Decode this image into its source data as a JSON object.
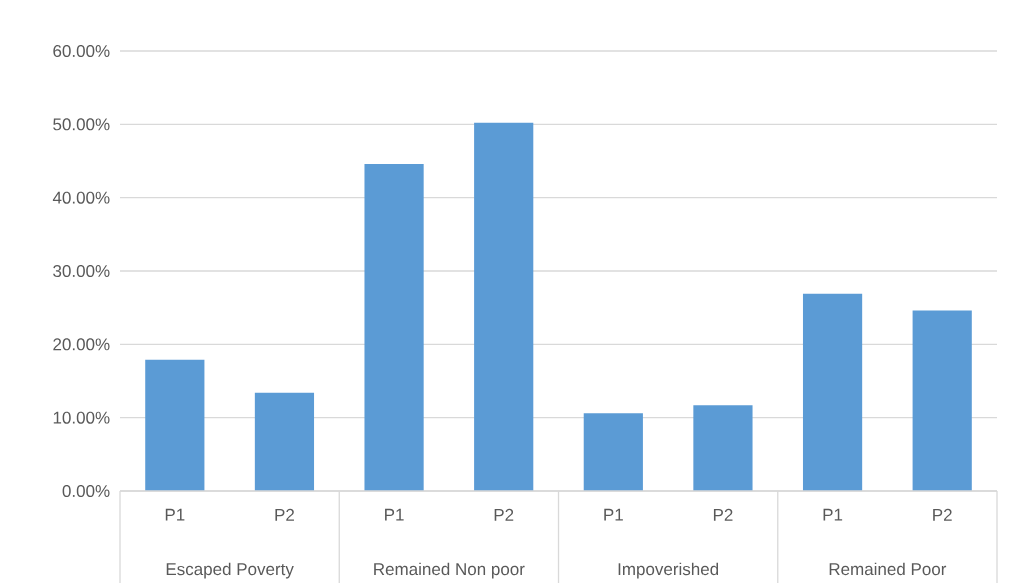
{
  "chart_data": {
    "type": "bar",
    "categories": [
      "P1",
      "P2",
      "P1",
      "P2",
      "P1",
      "P2",
      "P1",
      "P2"
    ],
    "values": [
      17.9,
      13.4,
      44.6,
      50.2,
      10.6,
      11.7,
      26.9,
      24.6
    ],
    "color": "#5b9bd5",
    "ylim": [
      0,
      60
    ],
    "yticks": [
      {
        "value": 0,
        "label": "0.00%"
      },
      {
        "value": 10,
        "label": "10.00%"
      },
      {
        "value": 20,
        "label": "20.00%"
      },
      {
        "value": 30,
        "label": "30.00%"
      },
      {
        "value": 40,
        "label": "40.00%"
      },
      {
        "value": 50,
        "label": "50.00%"
      },
      {
        "value": 60,
        "label": "60.00%"
      }
    ],
    "grid": "y",
    "annotations": [
      "Escaped Poverty",
      "Remained Non poor",
      "Impoverished",
      "Remained Poor"
    ]
  }
}
